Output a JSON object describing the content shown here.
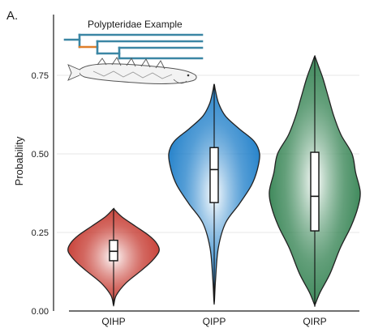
{
  "panel_label": "A.",
  "inset": {
    "title": "Polypteridae Example",
    "tree_color": "#3b86a4",
    "highlight_branch_color": "#e07f2a",
    "fish_icon": "bichir-fish-sketch"
  },
  "chart_data": {
    "type": "violin",
    "title": "",
    "xlabel": "",
    "ylabel": "Probability",
    "ylim": [
      0,
      1.0
    ],
    "y_ticks": [
      "0.00",
      "0.25",
      "0.50",
      "0.75"
    ],
    "grid": "horizontal",
    "categories": [
      "QIHP",
      "QIPP",
      "QIRP"
    ],
    "series": [
      {
        "category": "QIHP",
        "color": "#c4342a",
        "min": 0.02,
        "q1": 0.16,
        "median": 0.19,
        "q3": 0.225,
        "max": 0.325,
        "density": [
          [
            0.02,
            0.005
          ],
          [
            0.05,
            0.06
          ],
          [
            0.09,
            0.28
          ],
          [
            0.13,
            0.62
          ],
          [
            0.16,
            0.85
          ],
          [
            0.19,
            1.0
          ],
          [
            0.215,
            0.95
          ],
          [
            0.24,
            0.78
          ],
          [
            0.27,
            0.48
          ],
          [
            0.3,
            0.18
          ],
          [
            0.325,
            0.005
          ]
        ]
      },
      {
        "category": "QIPP",
        "color": "#1a7cc8",
        "min": 0.03,
        "q1": 0.345,
        "median": 0.45,
        "q3": 0.52,
        "max": 0.72,
        "density": [
          [
            0.03,
            0.005
          ],
          [
            0.1,
            0.03
          ],
          [
            0.2,
            0.09
          ],
          [
            0.28,
            0.25
          ],
          [
            0.34,
            0.55
          ],
          [
            0.4,
            0.82
          ],
          [
            0.45,
            0.95
          ],
          [
            0.5,
            1.0
          ],
          [
            0.54,
            0.88
          ],
          [
            0.58,
            0.55
          ],
          [
            0.62,
            0.25
          ],
          [
            0.66,
            0.1
          ],
          [
            0.7,
            0.03
          ],
          [
            0.72,
            0.005
          ]
        ]
      },
      {
        "category": "QIRP",
        "color": "#2e7f4d",
        "min": 0.02,
        "q1": 0.255,
        "median": 0.365,
        "q3": 0.505,
        "max": 0.81,
        "density": [
          [
            0.02,
            0.005
          ],
          [
            0.06,
            0.12
          ],
          [
            0.12,
            0.34
          ],
          [
            0.2,
            0.56
          ],
          [
            0.27,
            0.8
          ],
          [
            0.33,
            0.95
          ],
          [
            0.38,
            1.0
          ],
          [
            0.44,
            0.9
          ],
          [
            0.5,
            0.82
          ],
          [
            0.56,
            0.58
          ],
          [
            0.62,
            0.42
          ],
          [
            0.68,
            0.3
          ],
          [
            0.74,
            0.18
          ],
          [
            0.78,
            0.08
          ],
          [
            0.81,
            0.005
          ]
        ]
      }
    ]
  }
}
